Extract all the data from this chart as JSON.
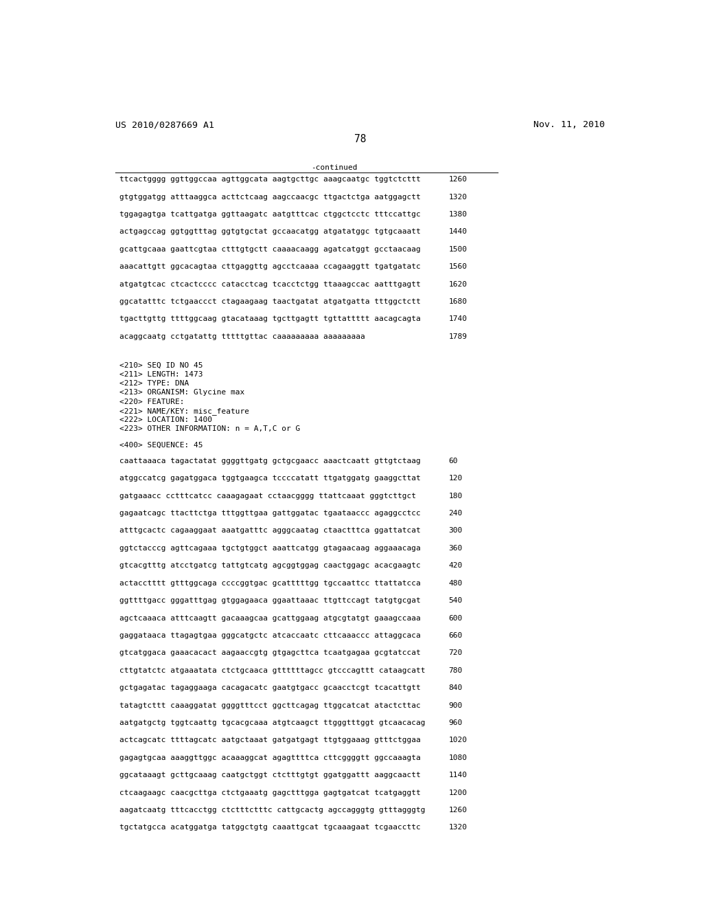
{
  "header_left": "US 2010/0287669 A1",
  "header_right": "Nov. 11, 2010",
  "page_number": "78",
  "continued_label": "-continued",
  "bg_color": "#ffffff",
  "text_color": "#000000",
  "font_size": 8.0,
  "header_font_size": 9.5,
  "page_num_font_size": 10.5,
  "sequence_lines_top": [
    [
      "ttcactgggg ggttggccaa agttggcata aagtgcttgc aaagcaatgc tggtctcttt",
      "1260"
    ],
    [
      "gtgtggatgg atttaaggca acttctcaag aagccaacgc ttgactctga aatggagctt",
      "1320"
    ],
    [
      "tggagagtga tcattgatga ggttaagatc aatgtttcac ctggctcctc tttccattgc",
      "1380"
    ],
    [
      "actgagccag ggtggtttag ggtgtgctat gccaacatgg atgatatggc tgtgcaaatt",
      "1440"
    ],
    [
      "gcattgcaaa gaattcgtaa ctttgtgctt caaaacaagg agatcatggt gcctaacaag",
      "1500"
    ],
    [
      "aaacattgtt ggcacagtaa cttgaggttg agcctcaaaa ccagaaggtt tgatgatatc",
      "1560"
    ],
    [
      "atgatgtcac ctcactcccc catacctcag tcacctctgg ttaaagccac aatttgagtt",
      "1620"
    ],
    [
      "ggcatatttc tctgaaccct ctagaagaag taactgatat atgatgatta tttggctctt",
      "1680"
    ],
    [
      "tgacttgttg ttttggcaag gtacataaag tgcttgagtt tgttattttt aacagcagta",
      "1740"
    ],
    [
      "acaggcaatg cctgatattg tttttgttac caaaaaaaaa aaaaaaaaa",
      "1789"
    ]
  ],
  "metadata_lines": [
    "<210> SEQ ID NO 45",
    "<211> LENGTH: 1473",
    "<212> TYPE: DNA",
    "<213> ORGANISM: Glycine max",
    "<220> FEATURE:",
    "<221> NAME/KEY: misc_feature",
    "<222> LOCATION: 1400",
    "<223> OTHER INFORMATION: n = A,T,C or G"
  ],
  "sequence_label": "<400> SEQUENCE: 45",
  "sequence_lines_bottom": [
    [
      "caattaaaca tagactatat ggggttgatg gctgcgaacc aaactcaatt gttgtctaag",
      "60"
    ],
    [
      "atggccatcg gagatggaca tggtgaagca tccccatatt ttgatggatg gaaggcttat",
      "120"
    ],
    [
      "gatgaaacc cctttcatcc caaagagaat cctaacgggg ttattcaaat gggtcttgct",
      "180"
    ],
    [
      "gagaatcagc ttacttctga tttggttgaa gattggatac tgaataaccc agaggcctcc",
      "240"
    ],
    [
      "atttgcactc cagaaggaat aaatgatttc agggcaatag ctaactttca ggattatcat",
      "300"
    ],
    [
      "ggtctacccg agttcagaaa tgctgtggct aaattcatgg gtagaacaag aggaaacaga",
      "360"
    ],
    [
      "gtcacgtttg atcctgatcg tattgtcatg agcggtggag caactggagc acacgaagtc",
      "420"
    ],
    [
      "actacctttt gtttggcaga ccccggtgac gcatttttgg tgccaattcc ttattatcca",
      "480"
    ],
    [
      "ggttttgacc gggatttgag gtggagaaca ggaattaaac ttgttccagt tatgtgcgat",
      "540"
    ],
    [
      "agctcaaaca atttcaagtt gacaaagcaa gcattggaag atgcgtatgt gaaagccaaa",
      "600"
    ],
    [
      "gaggataaca ttagagtgaa gggcatgctc atcaccaatc cttcaaaccc attaggcaca",
      "660"
    ],
    [
      "gtcatggaca gaaacacact aagaaccgtg gtgagcttca tcaatgagaa gcgtatccat",
      "720"
    ],
    [
      "cttgtatctc atgaaatata ctctgcaaca gttttttagcc gtcccagttt cataagcatt",
      "780"
    ],
    [
      "gctgagatac tagaggaaga cacagacatc gaatgtgacc gcaacctcgt tcacattgtt",
      "840"
    ],
    [
      "tatagtcttt caaaggatat ggggtttcct ggcttcagag ttggcatcat atactcttac",
      "900"
    ],
    [
      "aatgatgctg tggtcaattg tgcacgcaaa atgtcaagct ttgggtttggt gtcaacacag",
      "960"
    ],
    [
      "actcagcatc ttttagcatc aatgctaaat gatgatgagt ttgtggaaag gtttctggaa",
      "1020"
    ],
    [
      "gagagtgcaa aaaggttggc acaaaggcat agagttttca cttcggggtt ggccaaagta",
      "1080"
    ],
    [
      "ggcataaagt gcttgcaaag caatgctggt ctctttgtgt ggatggattt aaggcaactt",
      "1140"
    ],
    [
      "ctcaagaagc caacgcttga ctctgaaatg gagctttgga gagtgatcat tcatgaggtt",
      "1200"
    ],
    [
      "aagatcaatg tttcacctgg ctctttctttc cattgcactg agccagggtg gtttagggtg",
      "1260"
    ],
    [
      "tgctatgcca acatggatga tatggctgtg caaattgcat tgcaaagaat tcgaaccttc",
      "1320"
    ]
  ]
}
